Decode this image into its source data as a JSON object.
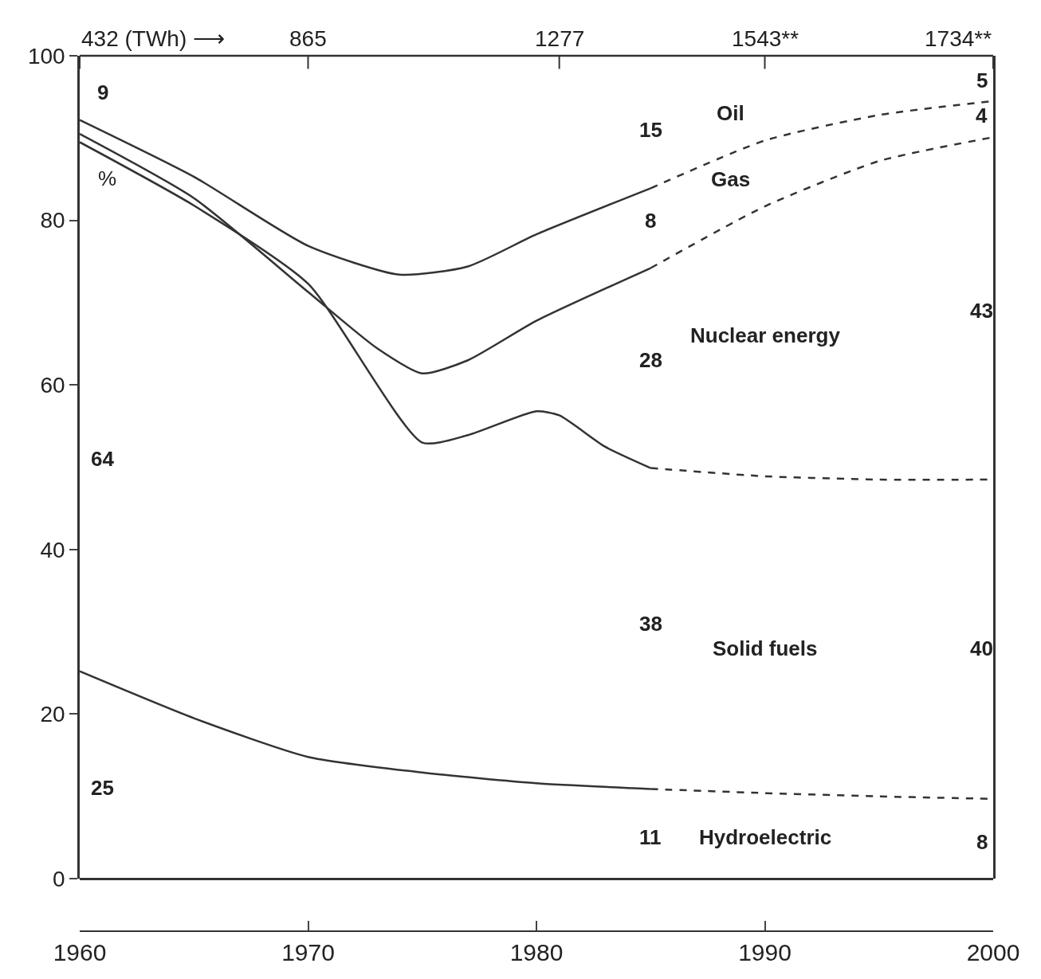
{
  "chart_data": {
    "type": "line",
    "ylabel": "%",
    "series": [
      {
        "color": "#333333",
        "line_style": "solid",
        "x": [
          1960,
          1965,
          1970,
          1975,
          1980,
          1985
        ],
        "values": [
          25.2,
          19.5,
          14.8,
          12.9,
          11.6,
          10.9
        ]
      },
      {
        "color": "#333333",
        "line_style": "dashed",
        "x": [
          1985,
          1990,
          1995,
          2000
        ],
        "values": [
          10.9,
          10.4,
          10,
          9.7
        ]
      },
      {
        "color": "#333333",
        "line_style": "solid",
        "x": [
          1960,
          1965,
          1970,
          1975,
          1977,
          1980,
          1981,
          1983,
          1985
        ],
        "values": [
          89.5,
          81.8,
          72.3,
          53,
          53.9,
          56.8,
          56.3,
          52.5,
          49.9
        ]
      },
      {
        "color": "#333333",
        "line_style": "dashed",
        "x": [
          1985,
          1990,
          1995,
          2000
        ],
        "values": [
          49.9,
          48.9,
          48.5,
          48.5
        ]
      },
      {
        "color": "#333333",
        "line_style": "solid",
        "x": [
          1960,
          1965,
          1970,
          1973,
          1975,
          1977,
          1980,
          1985
        ],
        "values": [
          90.5,
          82.7,
          71.3,
          64.5,
          61.4,
          63,
          67.8,
          74.2
        ]
      },
      {
        "color": "#333333",
        "line_style": "dashed",
        "x": [
          1985,
          1990,
          1995,
          2000
        ],
        "values": [
          74.2,
          81.7,
          87.2,
          90.1
        ]
      },
      {
        "color": "#333333",
        "line_style": "solid",
        "x": [
          1960,
          1965,
          1970,
          1974,
          1977,
          1980,
          1985
        ],
        "values": [
          92.2,
          85.3,
          76.9,
          73.4,
          74.4,
          78.3,
          83.9
        ]
      },
      {
        "color": "#333333",
        "line_style": "dashed",
        "x": [
          1985,
          1990,
          1995,
          2000
        ],
        "values": [
          83.9,
          89.7,
          92.8,
          94.5
        ]
      }
    ],
    "xlim": [
      1960,
      2000
    ],
    "xticks": [
      1960,
      1970,
      1980,
      1990,
      2000
    ],
    "ylim": [
      0,
      100
    ],
    "yticks": [
      0,
      20,
      40,
      60,
      80,
      100
    ],
    "marker": "none",
    "annotations": [
      "9",
      "15",
      "Oil",
      "5",
      "4",
      "Gas",
      "8",
      "43",
      "Nuclear energy",
      "28",
      "64",
      "38",
      "Solid fuels",
      "40",
      "25",
      "11",
      "Hydroelectric",
      "8",
      "432 (TWh) ⟶",
      "865",
      "1277",
      "1543**",
      "1734**"
    ]
  }
}
